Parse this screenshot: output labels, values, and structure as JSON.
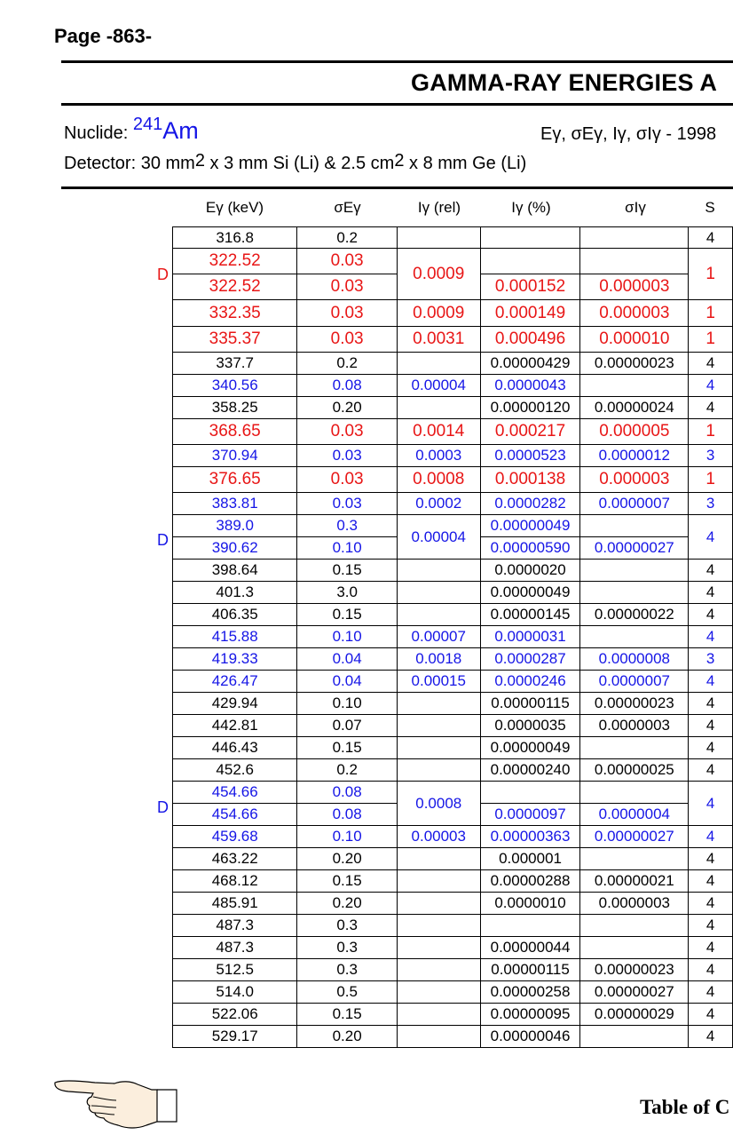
{
  "page": {
    "number": "Page -863-"
  },
  "header": {
    "title": "GAMMA-RAY ENERGIES A",
    "nuclide_label": "Nuclide:",
    "nuclide_mass": "241",
    "nuclide_symbol": "Am",
    "params": "Eγ, σEγ, Iγ, σIγ - 1998",
    "detector_a": "Detector: 30 mm",
    "detector_sup1": "2",
    "detector_b": " x 3 mm Si (Li) & 2.5 cm",
    "detector_sup2": "2",
    "detector_c": " x 8 mm Ge (Li)"
  },
  "table": {
    "headers": {
      "energy": "Eγ (keV)",
      "sigma_energy": "σEγ",
      "intensity_rel": "Iγ (rel)",
      "intensity_pct": "Iγ (%)",
      "sigma_intensity": "σIγ",
      "source": "S"
    },
    "doublet_marker": "D",
    "colors": {
      "red": "#e81616",
      "blue": "#1515e6",
      "black": "#000000"
    }
  },
  "footer": {
    "toc_label": "Table of C",
    "pointer_icon": "pointing-hand-icon"
  }
}
